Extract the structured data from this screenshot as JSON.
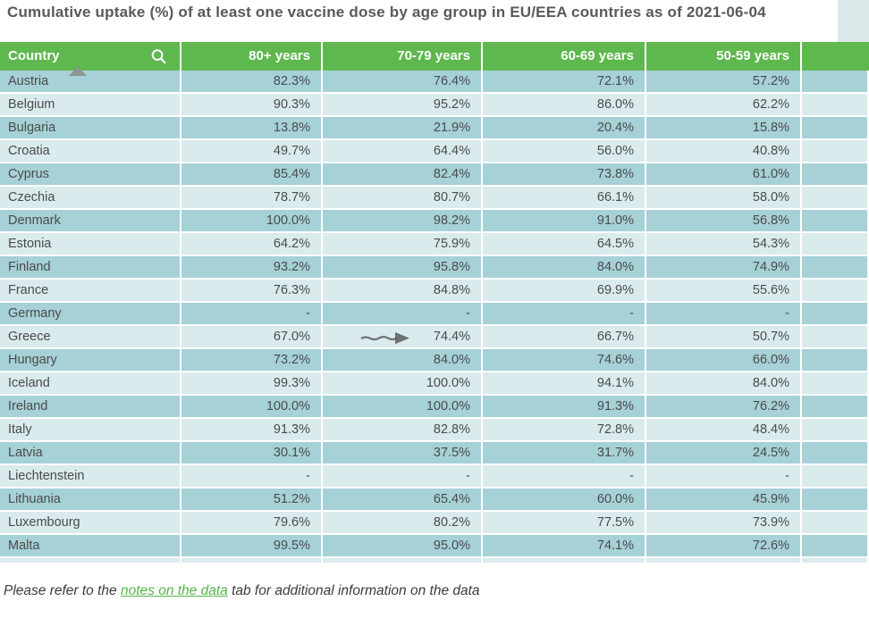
{
  "title": "Cumulative uptake (%) of at least one vaccine dose by age group in EU/EEA countries as of 2021-06-04",
  "table": {
    "columns": [
      "Country",
      "80+ years",
      "70-79 years",
      "60-69 years",
      "50-59 years"
    ],
    "sort_indicator": {
      "column": "Country",
      "direction": "ascending"
    },
    "rows": [
      {
        "country": "Austria",
        "values": [
          "82.3%",
          "76.4%",
          "72.1%",
          "57.2%"
        ]
      },
      {
        "country": "Belgium",
        "values": [
          "90.3%",
          "95.2%",
          "86.0%",
          "62.2%"
        ]
      },
      {
        "country": "Bulgaria",
        "values": [
          "13.8%",
          "21.9%",
          "20.4%",
          "15.8%"
        ]
      },
      {
        "country": "Croatia",
        "values": [
          "49.7%",
          "64.4%",
          "56.0%",
          "40.8%"
        ]
      },
      {
        "country": "Cyprus",
        "values": [
          "85.4%",
          "82.4%",
          "73.8%",
          "61.0%"
        ]
      },
      {
        "country": "Czechia",
        "values": [
          "78.7%",
          "80.7%",
          "66.1%",
          "58.0%"
        ]
      },
      {
        "country": "Denmark",
        "values": [
          "100.0%",
          "98.2%",
          "91.0%",
          "56.8%"
        ]
      },
      {
        "country": "Estonia",
        "values": [
          "64.2%",
          "75.9%",
          "64.5%",
          "54.3%"
        ]
      },
      {
        "country": "Finland",
        "values": [
          "93.2%",
          "95.8%",
          "84.0%",
          "74.9%"
        ]
      },
      {
        "country": "France",
        "values": [
          "76.3%",
          "84.8%",
          "69.9%",
          "55.6%"
        ]
      },
      {
        "country": "Germany",
        "values": [
          "-",
          "-",
          "-",
          "-"
        ]
      },
      {
        "country": "Greece",
        "values": [
          "67.0%",
          "74.4%",
          "66.7%",
          "50.7%"
        ]
      },
      {
        "country": "Hungary",
        "values": [
          "73.2%",
          "84.0%",
          "74.6%",
          "66.0%"
        ]
      },
      {
        "country": "Iceland",
        "values": [
          "99.3%",
          "100.0%",
          "94.1%",
          "84.0%"
        ]
      },
      {
        "country": "Ireland",
        "values": [
          "100.0%",
          "100.0%",
          "91.3%",
          "76.2%"
        ]
      },
      {
        "country": "Italy",
        "values": [
          "91.3%",
          "82.8%",
          "72.8%",
          "48.4%"
        ]
      },
      {
        "country": "Latvia",
        "values": [
          "30.1%",
          "37.5%",
          "31.7%",
          "24.5%"
        ]
      },
      {
        "country": "Liechtenstein",
        "values": [
          "-",
          "-",
          "-",
          "-"
        ]
      },
      {
        "country": "Lithuania",
        "values": [
          "51.2%",
          "65.4%",
          "60.0%",
          "45.9%"
        ]
      },
      {
        "country": "Luxembourg",
        "values": [
          "79.6%",
          "80.2%",
          "77.5%",
          "73.9%"
        ]
      },
      {
        "country": "Malta",
        "values": [
          "99.5%",
          "95.0%",
          "74.1%",
          "72.6%"
        ]
      }
    ]
  },
  "annotations": {
    "arrow": {
      "shape": "right-arrow",
      "target_row": "Greece",
      "target_column": "70-79 years",
      "target_value": "74.4%"
    }
  },
  "icons": {
    "search": "magnifier",
    "sort": "triangle-up"
  },
  "footer": {
    "prefix": "Please refer to the ",
    "link": "notes on the data",
    "suffix": " tab for additional information on the data"
  },
  "colors": {
    "header_green": "#5eb84e",
    "row_dark": "#a6d1d6",
    "row_light": "#daebed",
    "title_text": "#58595b",
    "cell_text": "#4a4b4c",
    "link_green": "#54b44a"
  }
}
